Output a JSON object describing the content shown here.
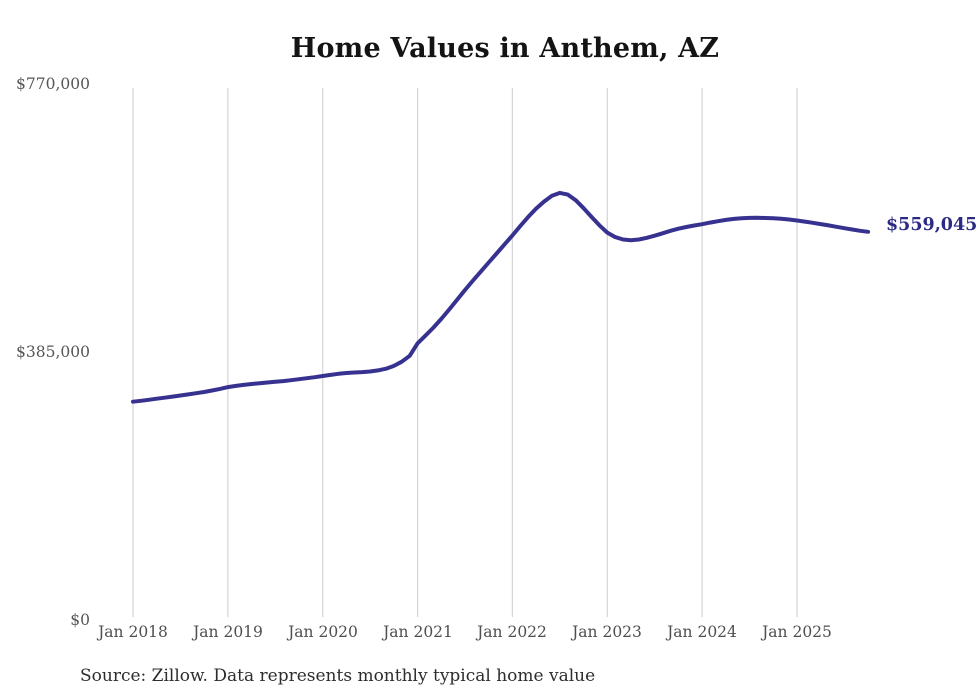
{
  "colors": {
    "line": "#37328f",
    "grid": "#d7d7d7",
    "end_label": "#2b2a85",
    "axis_text": "#4f4f4f",
    "background": "#ffffff"
  },
  "chart": {
    "title": "Home Values in Anthem, AZ",
    "end_label": "$559,045",
    "source_note": "Source: Zillow. Data represents monthly typical home value"
  },
  "chart_data": {
    "type": "line",
    "title": "Home Values in Anthem, AZ",
    "xlabel": "",
    "ylabel": "",
    "ylim": [
      0,
      770000
    ],
    "grid": "vertical-only",
    "legend": "none",
    "y_ticks": [
      {
        "value": 0,
        "label": "$0"
      },
      {
        "value": 385000,
        "label": "$385,000"
      },
      {
        "value": 770000,
        "label": "$770,000"
      }
    ],
    "x_ticks": [
      "Jan 2018",
      "Jan 2019",
      "Jan 2020",
      "Jan 2021",
      "Jan 2022",
      "Jan 2023",
      "Jan 2024",
      "Jan 2025"
    ],
    "x_start": "2018-01",
    "x_interval": "month",
    "end_label": "$559,045",
    "last_value": 559045,
    "source": "Source: Zillow. Data represents monthly typical home value",
    "series": [
      {
        "name": "Monthly typical home value",
        "color": "#37328f",
        "values": [
          315000,
          316400,
          317800,
          319300,
          320800,
          322300,
          323900,
          325500,
          327200,
          329000,
          331100,
          333400,
          336000,
          337700,
          339200,
          340500,
          341600,
          342600,
          343600,
          344700,
          345900,
          347300,
          348800,
          350300,
          352000,
          353600,
          355100,
          356200,
          357000,
          357600,
          358400,
          360000,
          362500,
          366500,
          372500,
          381000,
          399000,
          410000,
          421500,
          434000,
          447500,
          461500,
          475500,
          489000,
          502000,
          515000,
          528000,
          541000,
          554000,
          567500,
          580500,
          592500,
          602500,
          611000,
          615000,
          612500,
          604500,
          593000,
          580500,
          568500,
          558000,
          551500,
          548000,
          547000,
          548000,
          550500,
          553500,
          557000,
          560500,
          563500,
          566000,
          568200,
          570000,
          572300,
          574400,
          576200,
          577600,
          578600,
          579100,
          579200,
          579000,
          578600,
          577900,
          576800,
          575300,
          573700,
          572000,
          570200,
          568300,
          566300,
          564300,
          562400,
          560600,
          559045
        ]
      }
    ]
  }
}
